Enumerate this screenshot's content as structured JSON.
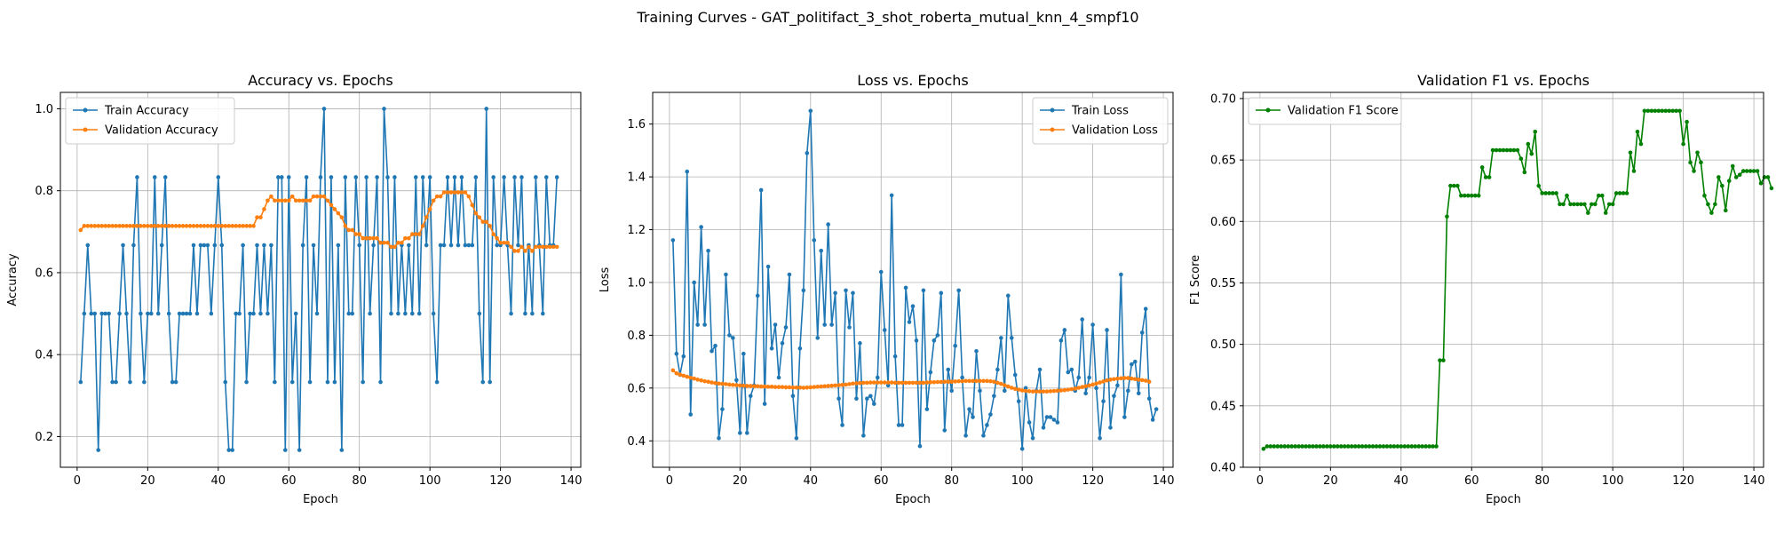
{
  "figure_title": "Training Curves - GAT_politifact_3_shot_roberta_mutual_knn_4_smpf10",
  "chart_data": [
    {
      "type": "line",
      "title": "Accuracy vs. Epochs",
      "xlabel": "Epoch",
      "ylabel": "Accuracy",
      "xlim": [
        -4.75,
        142.75
      ],
      "ylim": [
        0.125,
        1.04
      ],
      "xticks": [
        0,
        20,
        40,
        60,
        80,
        100,
        120,
        140
      ],
      "yticks": [
        0.2,
        0.4,
        0.6,
        0.8,
        1.0
      ],
      "ytick_decimals": 1,
      "grid": true,
      "legend": "upper left",
      "series": [
        {
          "name": "Train Accuracy",
          "color": "#1f77b4",
          "values": [
            0.333,
            0.5,
            0.667,
            0.5,
            0.5,
            0.167,
            0.5,
            0.5,
            0.5,
            0.333,
            0.333,
            0.5,
            0.667,
            0.5,
            0.333,
            0.667,
            0.833,
            0.5,
            0.333,
            0.5,
            0.5,
            0.833,
            0.5,
            0.667,
            0.833,
            0.5,
            0.333,
            0.333,
            0.5,
            0.5,
            0.5,
            0.5,
            0.667,
            0.5,
            0.667,
            0.667,
            0.667,
            0.5,
            0.667,
            0.833,
            0.667,
            0.333,
            0.167,
            0.167,
            0.5,
            0.5,
            0.667,
            0.333,
            0.5,
            0.5,
            0.667,
            0.5,
            0.667,
            0.5,
            0.667,
            0.333,
            0.833,
            0.833,
            0.167,
            0.833,
            0.333,
            0.5,
            0.167,
            0.667,
            0.833,
            0.333,
            0.667,
            0.5,
            0.833,
            1.0,
            0.333,
            0.833,
            0.333,
            0.667,
            0.167,
            0.833,
            0.5,
            0.5,
            0.833,
            0.667,
            0.333,
            0.833,
            0.5,
            0.667,
            0.833,
            0.333,
            1.0,
            0.833,
            0.5,
            0.833,
            0.5,
            0.667,
            0.5,
            0.667,
            0.5,
            0.833,
            0.5,
            0.833,
            0.667,
            0.833,
            0.5,
            0.333,
            0.667,
            0.667,
            0.833,
            0.667,
            0.833,
            0.667,
            0.833,
            0.667,
            0.667,
            0.667,
            0.833,
            0.5,
            0.333,
            1.0,
            0.333,
            0.833,
            0.667,
            0.667,
            0.833,
            0.667,
            0.5,
            0.833,
            0.667,
            0.833,
            0.5,
            0.667,
            0.5,
            0.833,
            0.667,
            0.5,
            0.833,
            0.667,
            0.667,
            0.833
          ]
        },
        {
          "name": "Validation Accuracy",
          "color": "#ff7f0e",
          "values": [
            0.704,
            0.714,
            0.714,
            0.714,
            0.714,
            0.714,
            0.714,
            0.714,
            0.714,
            0.714,
            0.714,
            0.714,
            0.714,
            0.714,
            0.714,
            0.714,
            0.714,
            0.714,
            0.714,
            0.714,
            0.714,
            0.714,
            0.714,
            0.714,
            0.714,
            0.714,
            0.714,
            0.714,
            0.714,
            0.714,
            0.714,
            0.714,
            0.714,
            0.714,
            0.714,
            0.714,
            0.714,
            0.714,
            0.714,
            0.714,
            0.714,
            0.714,
            0.714,
            0.714,
            0.714,
            0.714,
            0.714,
            0.714,
            0.714,
            0.714,
            0.735,
            0.735,
            0.755,
            0.776,
            0.786,
            0.776,
            0.776,
            0.776,
            0.776,
            0.776,
            0.786,
            0.776,
            0.776,
            0.776,
            0.776,
            0.776,
            0.786,
            0.786,
            0.786,
            0.786,
            0.776,
            0.765,
            0.755,
            0.745,
            0.735,
            0.714,
            0.704,
            0.704,
            0.694,
            0.694,
            0.684,
            0.684,
            0.684,
            0.684,
            0.684,
            0.673,
            0.673,
            0.673,
            0.663,
            0.663,
            0.673,
            0.673,
            0.684,
            0.684,
            0.694,
            0.694,
            0.694,
            0.714,
            0.735,
            0.755,
            0.776,
            0.786,
            0.786,
            0.796,
            0.796,
            0.796,
            0.796,
            0.796,
            0.796,
            0.796,
            0.786,
            0.765,
            0.745,
            0.735,
            0.724,
            0.724,
            0.714,
            0.694,
            0.684,
            0.673,
            0.673,
            0.673,
            0.663,
            0.653,
            0.653,
            0.663,
            0.653,
            0.663,
            0.653,
            0.663,
            0.663,
            0.663,
            0.663,
            0.663,
            0.663,
            0.663
          ]
        }
      ]
    },
    {
      "type": "line",
      "title": "Loss vs. Epochs",
      "xlabel": "Epoch",
      "ylabel": "Loss",
      "xlim": [
        -4.75,
        142.75
      ],
      "ylim": [
        0.3,
        1.72
      ],
      "xticks": [
        0,
        20,
        40,
        60,
        80,
        100,
        120,
        140
      ],
      "yticks": [
        0.4,
        0.6,
        0.8,
        1.0,
        1.2,
        1.4,
        1.6
      ],
      "ytick_decimals": 1,
      "grid": true,
      "legend": "upper right",
      "series": [
        {
          "name": "Train Loss",
          "color": "#1f77b4",
          "values": [
            1.16,
            0.73,
            0.65,
            0.72,
            1.42,
            0.5,
            1.0,
            0.84,
            1.21,
            0.84,
            1.12,
            0.74,
            0.76,
            0.41,
            0.52,
            1.03,
            0.8,
            0.79,
            0.63,
            0.43,
            0.73,
            0.43,
            0.57,
            0.61,
            0.95,
            1.35,
            0.54,
            1.06,
            0.75,
            0.84,
            0.64,
            0.77,
            0.83,
            1.03,
            0.57,
            0.41,
            0.75,
            0.97,
            1.49,
            1.65,
            1.16,
            0.79,
            1.12,
            0.84,
            1.22,
            0.84,
            0.96,
            0.56,
            0.46,
            0.97,
            0.83,
            0.96,
            0.56,
            0.77,
            0.42,
            0.56,
            0.57,
            0.54,
            0.64,
            1.04,
            0.82,
            0.61,
            1.33,
            0.72,
            0.46,
            0.46,
            0.98,
            0.85,
            0.91,
            0.78,
            0.38,
            0.97,
            0.52,
            0.66,
            0.78,
            0.8,
            0.96,
            0.44,
            0.67,
            0.59,
            0.76,
            0.97,
            0.64,
            0.42,
            0.52,
            0.49,
            0.74,
            0.59,
            0.42,
            0.46,
            0.5,
            0.57,
            0.67,
            0.79,
            0.59,
            0.95,
            0.79,
            0.65,
            0.55,
            0.37,
            0.6,
            0.47,
            0.41,
            0.59,
            0.67,
            0.45,
            0.49,
            0.49,
            0.48,
            0.47,
            0.78,
            0.82,
            0.66,
            0.67,
            0.59,
            0.64,
            0.86,
            0.58,
            0.64,
            0.84,
            0.6,
            0.41,
            0.55,
            0.82,
            0.45,
            0.57,
            0.61,
            1.03,
            0.49,
            0.59,
            0.69,
            0.7,
            0.58,
            0.81,
            0.9,
            0.56,
            0.48,
            0.52
          ]
        },
        {
          "name": "Validation Loss",
          "color": "#ff7f0e",
          "values": [
            0.667,
            0.656,
            0.651,
            0.647,
            0.643,
            0.639,
            0.636,
            0.632,
            0.629,
            0.626,
            0.624,
            0.621,
            0.619,
            0.617,
            0.616,
            0.615,
            0.613,
            0.612,
            0.611,
            0.61,
            0.609,
            0.608,
            0.608,
            0.607,
            0.607,
            0.606,
            0.606,
            0.605,
            0.605,
            0.604,
            0.604,
            0.604,
            0.603,
            0.603,
            0.602,
            0.602,
            0.602,
            0.601,
            0.602,
            0.603,
            0.604,
            0.605,
            0.606,
            0.607,
            0.608,
            0.609,
            0.61,
            0.611,
            0.612,
            0.613,
            0.615,
            0.617,
            0.618,
            0.619,
            0.62,
            0.62,
            0.621,
            0.621,
            0.621,
            0.621,
            0.621,
            0.621,
            0.621,
            0.62,
            0.62,
            0.62,
            0.62,
            0.62,
            0.62,
            0.62,
            0.62,
            0.62,
            0.621,
            0.622,
            0.622,
            0.623,
            0.623,
            0.624,
            0.624,
            0.624,
            0.625,
            0.626,
            0.626,
            0.627,
            0.627,
            0.627,
            0.627,
            0.627,
            0.627,
            0.627,
            0.626,
            0.624,
            0.62,
            0.616,
            0.611,
            0.606,
            0.601,
            0.597,
            0.594,
            0.591,
            0.589,
            0.588,
            0.587,
            0.587,
            0.587,
            0.587,
            0.587,
            0.588,
            0.589,
            0.59,
            0.591,
            0.592,
            0.594,
            0.596,
            0.598,
            0.601,
            0.604,
            0.607,
            0.61,
            0.613,
            0.617,
            0.621,
            0.625,
            0.629,
            0.632,
            0.634,
            0.636,
            0.637,
            0.638,
            0.638,
            0.636,
            0.634,
            0.632,
            0.63,
            0.628,
            0.624
          ]
        }
      ]
    },
    {
      "type": "line",
      "title": "Validation F1 vs. Epochs",
      "xlabel": "Epoch",
      "ylabel": "F1 Score",
      "xlim": [
        -4.75,
        142.75
      ],
      "ylim": [
        0.4,
        0.705
      ],
      "xticks": [
        0,
        20,
        40,
        60,
        80,
        100,
        120,
        140
      ],
      "yticks": [
        0.4,
        0.45,
        0.5,
        0.55,
        0.6,
        0.65,
        0.7
      ],
      "ytick_decimals": 2,
      "grid": true,
      "legend": "upper left",
      "series": [
        {
          "name": "Validation F1 Score",
          "color": "#008000",
          "values": [
            0.415,
            0.417,
            0.417,
            0.417,
            0.417,
            0.417,
            0.417,
            0.417,
            0.417,
            0.417,
            0.417,
            0.417,
            0.417,
            0.417,
            0.417,
            0.417,
            0.417,
            0.417,
            0.417,
            0.417,
            0.417,
            0.417,
            0.417,
            0.417,
            0.417,
            0.417,
            0.417,
            0.417,
            0.417,
            0.417,
            0.417,
            0.417,
            0.417,
            0.417,
            0.417,
            0.417,
            0.417,
            0.417,
            0.417,
            0.417,
            0.417,
            0.417,
            0.417,
            0.417,
            0.417,
            0.417,
            0.417,
            0.417,
            0.417,
            0.417,
            0.487,
            0.487,
            0.604,
            0.629,
            0.629,
            0.629,
            0.621,
            0.621,
            0.621,
            0.621,
            0.621,
            0.621,
            0.644,
            0.636,
            0.636,
            0.658,
            0.658,
            0.658,
            0.658,
            0.658,
            0.658,
            0.658,
            0.658,
            0.651,
            0.64,
            0.663,
            0.655,
            0.673,
            0.629,
            0.623,
            0.623,
            0.623,
            0.623,
            0.623,
            0.614,
            0.614,
            0.621,
            0.614,
            0.614,
            0.614,
            0.614,
            0.614,
            0.607,
            0.614,
            0.614,
            0.621,
            0.621,
            0.607,
            0.614,
            0.614,
            0.623,
            0.623,
            0.623,
            0.623,
            0.656,
            0.641,
            0.673,
            0.663,
            0.69,
            0.69,
            0.69,
            0.69,
            0.69,
            0.69,
            0.69,
            0.69,
            0.69,
            0.69,
            0.69,
            0.663,
            0.681,
            0.648,
            0.641,
            0.656,
            0.648,
            0.621,
            0.614,
            0.607,
            0.614,
            0.636,
            0.629,
            0.609,
            0.633,
            0.645,
            0.636,
            0.638,
            0.641,
            0.641,
            0.641,
            0.641,
            0.641,
            0.631,
            0.636,
            0.636,
            0.627
          ]
        }
      ]
    }
  ]
}
